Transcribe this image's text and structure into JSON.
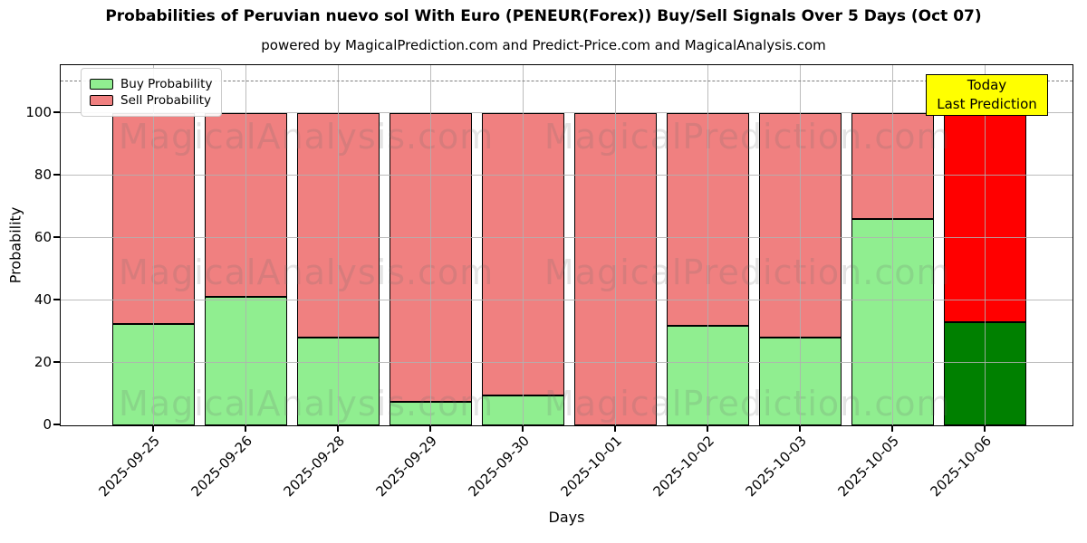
{
  "title": "Probabilities of Peruvian nuevo sol With Euro (PENEUR(Forex)) Buy/Sell Signals Over 5 Days (Oct 07)",
  "subtitle": "powered by MagicalPrediction.com and Predict-Price.com and MagicalAnalysis.com",
  "legend": {
    "buy_label": "Buy Probability",
    "sell_label": "Sell Probability"
  },
  "annotation": {
    "line1": "Today",
    "line2": "Last Prediction"
  },
  "watermarks": {
    "left_text": "MagicalAnalysis.com",
    "right_text": "MagicalPrediction.com"
  },
  "colors": {
    "buy": "#90ee90",
    "sell": "#f08080",
    "today_buy": "#008000",
    "today_sell": "#ff0000",
    "annotation_bg": "#ffff00",
    "grid": "#b0b0b0",
    "dashed_line": "#7f7f7f"
  },
  "chart_data": {
    "type": "bar",
    "stacked": true,
    "title": "Probabilities of Peruvian nuevo sol With Euro (PENEUR(Forex)) Buy/Sell Signals Over 5 Days (Oct 07)",
    "xlabel": "Days",
    "ylabel": "Probability",
    "ylim": [
      0,
      115
    ],
    "yticks": [
      0,
      20,
      40,
      60,
      80,
      100
    ],
    "grid": true,
    "dashed_line_y": 110,
    "legend_position": "upper left",
    "categories": [
      "2025-09-25",
      "2025-09-26",
      "2025-09-28",
      "2025-09-29",
      "2025-09-30",
      "2025-10-01",
      "2025-10-02",
      "2025-10-03",
      "2025-10-05",
      "2025-10-06"
    ],
    "series": [
      {
        "name": "Buy Probability",
        "values": [
          32.5,
          41,
          28,
          7.5,
          9.5,
          0,
          32,
          28,
          66,
          33
        ]
      },
      {
        "name": "Sell Probability",
        "values": [
          67.5,
          59,
          72,
          92.5,
          90.5,
          100,
          68,
          72,
          34,
          67
        ]
      }
    ],
    "last_bar_highlight": {
      "buy_color": "#008000",
      "sell_color": "#ff0000"
    }
  }
}
